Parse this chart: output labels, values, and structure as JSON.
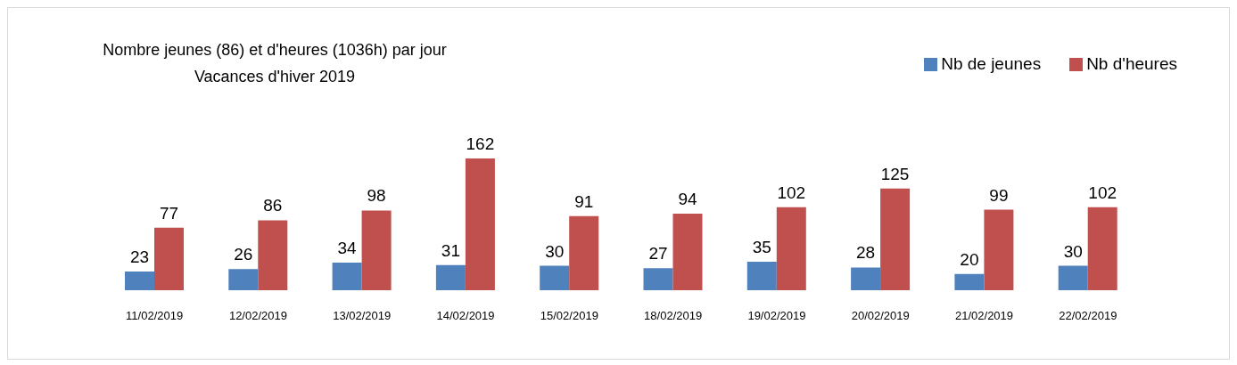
{
  "chart_data": {
    "type": "bar",
    "title": "Nombre jeunes (86) et d'heures (1036h) par jour",
    "subtitle": "Vacances d'hiver 2019",
    "categories": [
      "11/02/2019",
      "12/02/2019",
      "13/02/2019",
      "14/02/2019",
      "15/02/2019",
      "18/02/2019",
      "19/02/2019",
      "20/02/2019",
      "21/02/2019",
      "22/02/2019"
    ],
    "series": [
      {
        "name": "Nb de jeunes",
        "color": "#4f81bd",
        "values": [
          23,
          26,
          34,
          31,
          30,
          27,
          35,
          28,
          20,
          30
        ]
      },
      {
        "name": "Nb d'heures",
        "color": "#c0504d",
        "values": [
          77,
          86,
          98,
          162,
          91,
          94,
          102,
          125,
          99,
          102
        ]
      }
    ],
    "data_labels": true,
    "legend": "top right",
    "tick_labels": "x"
  }
}
